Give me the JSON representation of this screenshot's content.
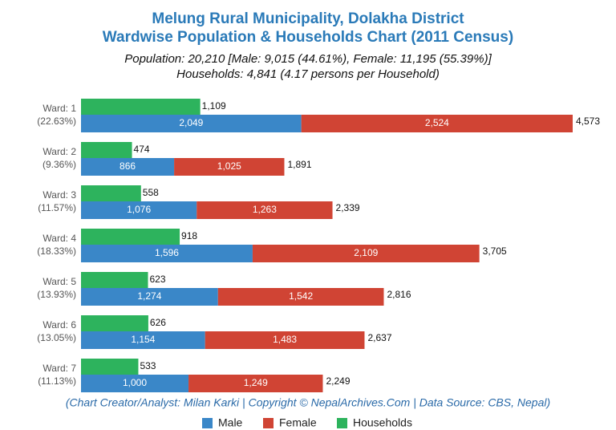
{
  "chart_data": {
    "type": "bar",
    "title": [
      "Melung Rural Municipality, Dolakha District",
      "Wardwise Population & Households Chart (2011 Census)"
    ],
    "subtitle": [
      "Population: 20,210 [Male: 9,015 (44.61%), Female: 11,195 (55.39%)]",
      "Households: 4,841 (4.17 persons per Household)"
    ],
    "categories": [
      "Ward: 1",
      "Ward: 2",
      "Ward: 3",
      "Ward: 4",
      "Ward: 5",
      "Ward: 6",
      "Ward: 7"
    ],
    "category_notes": [
      "(22.63%)",
      "(9.36%)",
      "(11.57%)",
      "(18.33%)",
      "(13.93%)",
      "(13.05%)",
      "(11.13%)"
    ],
    "series": [
      {
        "name": "Male",
        "color": "#3a87c8",
        "values": [
          2049,
          866,
          1076,
          1596,
          1274,
          1154,
          1000
        ],
        "value_labels": [
          "2,049",
          "866",
          "1,076",
          "1,596",
          "1,274",
          "1,154",
          "1,000"
        ]
      },
      {
        "name": "Female",
        "color": "#d04434",
        "values": [
          2524,
          1025,
          1263,
          2109,
          1542,
          1483,
          1249
        ],
        "value_labels": [
          "2,524",
          "1,025",
          "1,263",
          "2,109",
          "1,542",
          "1,483",
          "1,249"
        ]
      },
      {
        "name": "Households",
        "color": "#2db35d",
        "values": [
          1109,
          474,
          558,
          918,
          623,
          626,
          533
        ],
        "value_labels": [
          "1,109",
          "474",
          "558",
          "918",
          "623",
          "626",
          "533"
        ]
      }
    ],
    "totals": {
      "values": [
        4573,
        1891,
        2339,
        3705,
        2816,
        2637,
        2249
      ],
      "value_labels": [
        "4,573",
        "1,891",
        "2,339",
        "3,705",
        "2,816",
        "2,637",
        "2,249"
      ]
    },
    "footer": "(Chart Creator/Analyst: Milan Karki | Copyright © NepalArchives.Com | Data Source: CBS, Nepal)"
  }
}
